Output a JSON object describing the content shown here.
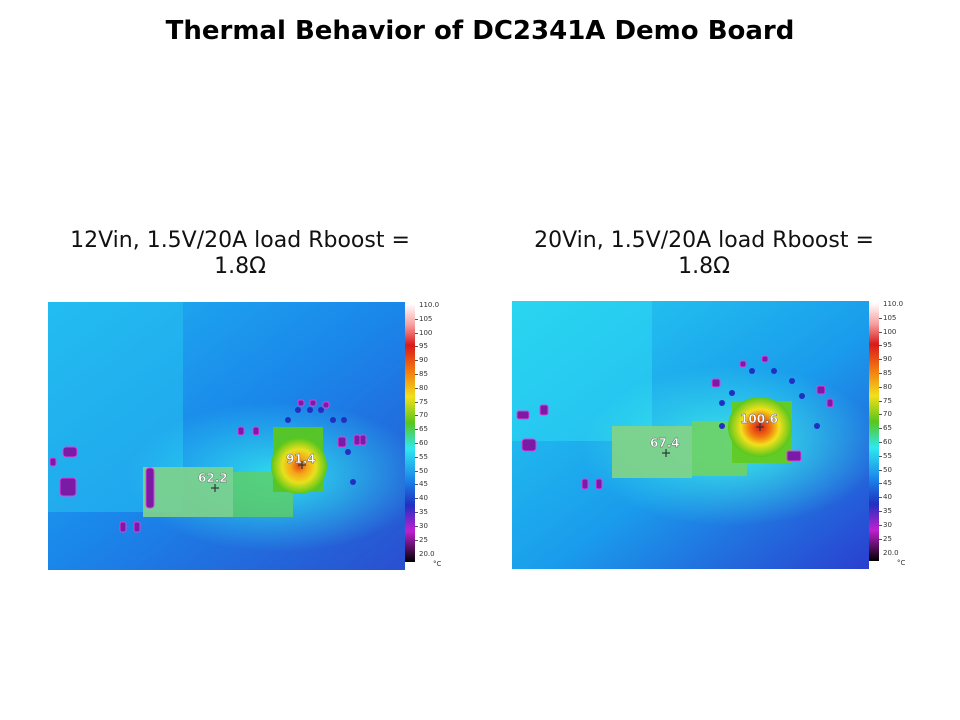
{
  "slide": {
    "title": "Thermal Behavior of DC2341A Demo Board"
  },
  "panels": [
    {
      "caption_line1": "12Vin, 1.5V/20A load Rboost =",
      "caption_line2": "1.8Ω",
      "hotspot_temp": "91.4",
      "secondary_temp": "62.2"
    },
    {
      "caption_line1": "20Vin, 1.5V/20A load Rboost =",
      "caption_line2": "1.8Ω",
      "hotspot_temp": "100.6",
      "secondary_temp": "67.4"
    }
  ],
  "scale": {
    "max_label": "110.0",
    "min_label": "20.0",
    "ticks": [
      "105",
      "100",
      "95",
      "90",
      "85",
      "80",
      "75",
      "70",
      "65",
      "60",
      "55",
      "50",
      "45",
      "40",
      "35",
      "30",
      "25"
    ],
    "unit": "°C"
  }
}
